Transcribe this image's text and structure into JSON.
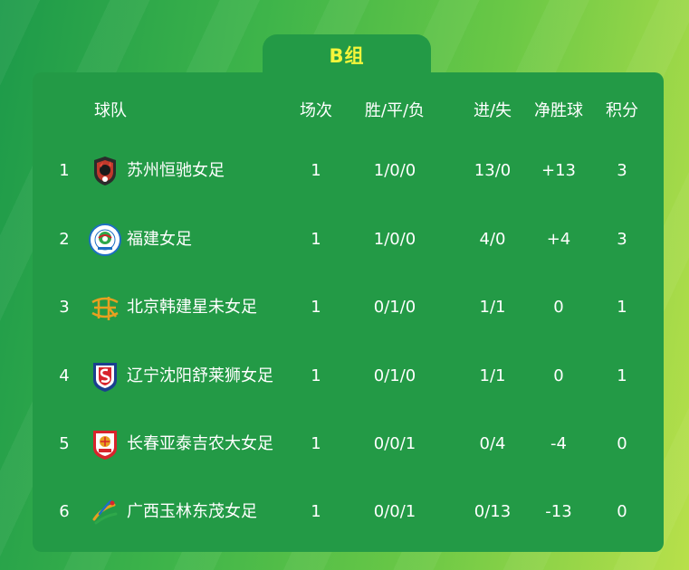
{
  "group": {
    "title": "B组"
  },
  "table": {
    "headers": {
      "team": "球队",
      "played": "场次",
      "wdl": "胜/平/负",
      "goals": "进/失",
      "goal_diff": "净胜球",
      "points": "积分"
    },
    "rows": [
      {
        "rank": "1",
        "team": "苏州恒驰女足",
        "logo": "suzhou-club-logo",
        "played": "1",
        "wdl": "1/0/0",
        "goals": "13/0",
        "goal_diff": "+13",
        "points": "3"
      },
      {
        "rank": "2",
        "team": "福建女足",
        "logo": "fujian-club-logo",
        "played": "1",
        "wdl": "1/0/0",
        "goals": "4/0",
        "goal_diff": "+4",
        "points": "3"
      },
      {
        "rank": "3",
        "team": "北京韩建星未女足",
        "logo": "beijing-club-logo",
        "played": "1",
        "wdl": "0/1/0",
        "goals": "1/1",
        "goal_diff": "0",
        "points": "1"
      },
      {
        "rank": "4",
        "team": "辽宁沈阳舒莱狮女足",
        "logo": "liaoning-club-logo",
        "played": "1",
        "wdl": "0/1/0",
        "goals": "1/1",
        "goal_diff": "0",
        "points": "1"
      },
      {
        "rank": "5",
        "team": "长春亚泰吉农大女足",
        "logo": "changchun-club-logo",
        "played": "1",
        "wdl": "0/0/1",
        "goals": "0/4",
        "goal_diff": "-4",
        "points": "0"
      },
      {
        "rank": "6",
        "team": "广西玉林东茂女足",
        "logo": "guangxi-club-logo",
        "played": "1",
        "wdl": "0/0/1",
        "goals": "0/13",
        "goal_diff": "-13",
        "points": "0"
      }
    ]
  },
  "colors": {
    "card_background": "#239a46",
    "tab_label": "#f5f53b",
    "text": "#ffffff"
  }
}
